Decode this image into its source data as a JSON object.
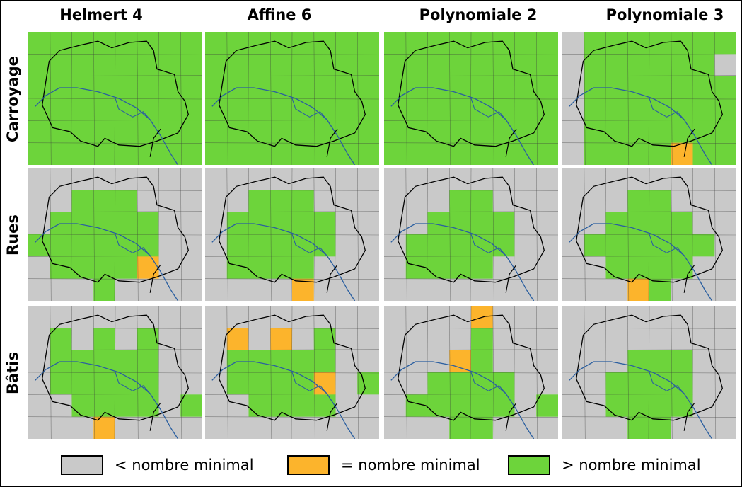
{
  "colors": {
    "below": "#c9c9c9",
    "equal": "#fcb42c",
    "above": "#6dd43b",
    "boundary": "#000000",
    "river": "#2b5fa0"
  },
  "columns": [
    "Helmert 4",
    "Affine 6",
    "Polynomiale 2",
    "Polynomiale 3"
  ],
  "rows": [
    "Carroyage",
    "Rues",
    "Bâtis"
  ],
  "legend": [
    {
      "key": "below",
      "label": "< nombre minimal"
    },
    {
      "key": "equal",
      "label": "= nombre minimal"
    },
    {
      "key": "above",
      "label": "> nombre minimal"
    }
  ],
  "grids": {
    "Carroyage": [
      [
        "GGGGGGGG|GGGGGGGG|GGGGGGGG|GGGGGGGG|GGGGGGGG|GGGGGGGG",
        "GGGGGGGG|GGGGGGGG|GGGGGGGG|GGGGGGGG|GGGGGGGG|GGGGGGGG",
        "GGGGGGGG|GGGGGGGG|GGGGGGGG|GGGGGGGG|GGGGGGGG|GGGGGGGG",
        "LGGGGGGG|LGGGGGGL|LGGGGGGG|LGGGGGGG|LGGGGGGG|LGGGGOGG"
      ]
    ],
    "Rues": [
      [
        "LLLLLLLL|LLGGGLLL|LGGGGGLL|GGGGGGLL|LGGGGOLL|LLLGLLLL",
        "LLLLLLLL|LLGGGLLL|LGGGGGLL|LGGGGGLL|LGGGGLLL|LLLLOLLL",
        "LLLLLLLL|LLLGGLLL|LLGGGGLL|LGGGGGLL|LGGGGLLL|LLLLLLLL",
        "LLLLLLLL|LLLGGLLL|LLGGGGLL|LGGGGGGL|LLGGGGLL|LLLOGLLL"
      ]
    ],
    "Bâtis": [
      [
        "LLLLLLLL|LGLGLGLL|LGGGGGLL|LGGGGGLL|LLGGGGLG|LLLOLLLL",
        "LLLLLLLL|LOLOLGLL|LGGGGGLL|LGGGGOLG|LLGGGGLL|LLLLLLLL",
        "LLLLOLLL|LLLLGLLL|LLLOGLLL|LLGGGGLL|LGGGGGLG|LLLGGLLL",
        "LLLLLLLL|LLLLLLLL|LLLGGGLL|LLGGGGLL|LLGGGGLL|LLLGGLLL"
      ]
    ]
  }
}
